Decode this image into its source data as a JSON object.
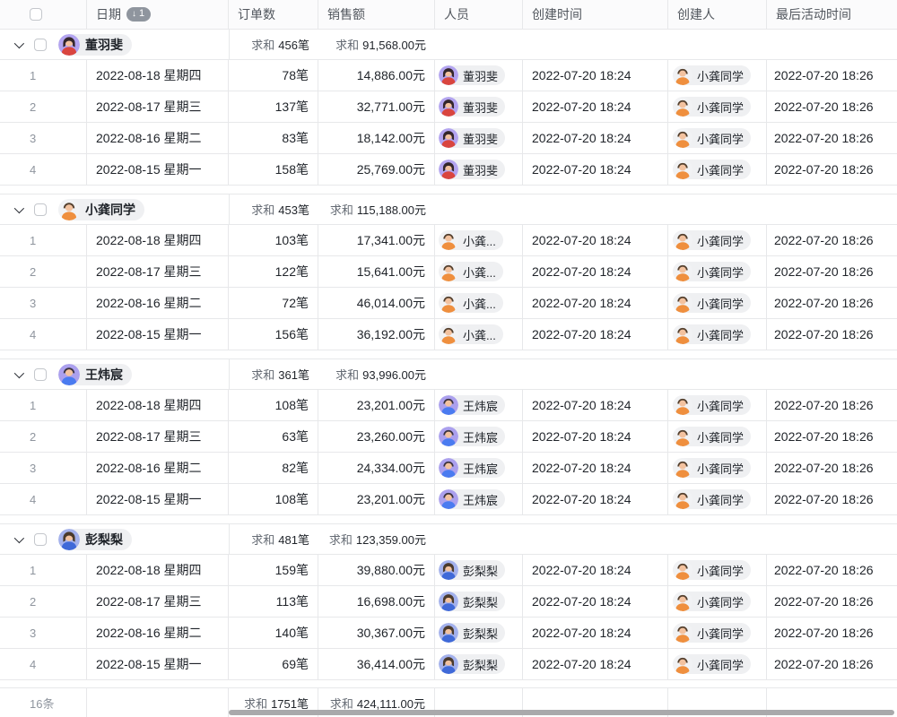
{
  "colors": {
    "border": "#e7e8ea",
    "header_bg": "#fbfbfc",
    "header_text": "#51565d",
    "text": "#1f2329",
    "muted": "#8f959e",
    "pill_bg": "#eff0f2",
    "sort_badge_bg": "#8f959e",
    "scrollbar": "#a9a9ab"
  },
  "avatars": {
    "dong": {
      "bg": "#b3a4f0",
      "hair": "#33262b",
      "shirt": "#d9453f",
      "female": true
    },
    "gong": {
      "bg": "#f1f2f4",
      "hair": "#54402e",
      "shirt": "#ef8f3e",
      "female": false
    },
    "wang": {
      "bg": "#aba0ee",
      "hair": "#3a3340",
      "shirt": "#4a7bf0",
      "female": false
    },
    "peng": {
      "bg": "#a3b1ec",
      "hair": "#4a3a2c",
      "shirt": "#3f69d8",
      "female": true
    }
  },
  "table": {
    "columns": [
      {
        "label": "日期"
      },
      {
        "label": "订单数"
      },
      {
        "label": "销售额"
      },
      {
        "label": "人员"
      },
      {
        "label": "创建时间"
      },
      {
        "label": "创建人"
      },
      {
        "label": "最后活动时间"
      }
    ],
    "sort": {
      "column": "日期",
      "icon": "↓",
      "order": "1"
    },
    "summary_label": "求和",
    "groups": [
      {
        "name": "董羽斐",
        "avatar": "dong",
        "orders_sum": "456笔",
        "sales_sum": "91,568.00元",
        "rows": [
          {
            "num": "1",
            "date": "2022-08-18 星期四",
            "orders": "78笔",
            "sales": "14,886.00元",
            "person": {
              "name": "董羽斐",
              "avatar": "dong"
            },
            "created": "2022-07-20 18:24",
            "creator": {
              "name": "小龚同学",
              "avatar": "gong"
            },
            "last_active": "2022-07-20 18:26"
          },
          {
            "num": "2",
            "date": "2022-08-17 星期三",
            "orders": "137笔",
            "sales": "32,771.00元",
            "person": {
              "name": "董羽斐",
              "avatar": "dong"
            },
            "created": "2022-07-20 18:24",
            "creator": {
              "name": "小龚同学",
              "avatar": "gong"
            },
            "last_active": "2022-07-20 18:26"
          },
          {
            "num": "3",
            "date": "2022-08-16 星期二",
            "orders": "83笔",
            "sales": "18,142.00元",
            "person": {
              "name": "董羽斐",
              "avatar": "dong"
            },
            "created": "2022-07-20 18:24",
            "creator": {
              "name": "小龚同学",
              "avatar": "gong"
            },
            "last_active": "2022-07-20 18:26"
          },
          {
            "num": "4",
            "date": "2022-08-15 星期一",
            "orders": "158笔",
            "sales": "25,769.00元",
            "person": {
              "name": "董羽斐",
              "avatar": "dong"
            },
            "created": "2022-07-20 18:24",
            "creator": {
              "name": "小龚同学",
              "avatar": "gong"
            },
            "last_active": "2022-07-20 18:26"
          }
        ]
      },
      {
        "name": "小龚同学",
        "avatar": "gong",
        "orders_sum": "453笔",
        "sales_sum": "115,188.00元",
        "rows": [
          {
            "num": "1",
            "date": "2022-08-18 星期四",
            "orders": "103笔",
            "sales": "17,341.00元",
            "person": {
              "name": "小龚...",
              "avatar": "gong"
            },
            "created": "2022-07-20 18:24",
            "creator": {
              "name": "小龚同学",
              "avatar": "gong"
            },
            "last_active": "2022-07-20 18:26"
          },
          {
            "num": "2",
            "date": "2022-08-17 星期三",
            "orders": "122笔",
            "sales": "15,641.00元",
            "person": {
              "name": "小龚...",
              "avatar": "gong"
            },
            "created": "2022-07-20 18:24",
            "creator": {
              "name": "小龚同学",
              "avatar": "gong"
            },
            "last_active": "2022-07-20 18:26"
          },
          {
            "num": "3",
            "date": "2022-08-16 星期二",
            "orders": "72笔",
            "sales": "46,014.00元",
            "person": {
              "name": "小龚...",
              "avatar": "gong"
            },
            "created": "2022-07-20 18:24",
            "creator": {
              "name": "小龚同学",
              "avatar": "gong"
            },
            "last_active": "2022-07-20 18:26"
          },
          {
            "num": "4",
            "date": "2022-08-15 星期一",
            "orders": "156笔",
            "sales": "36,192.00元",
            "person": {
              "name": "小龚...",
              "avatar": "gong"
            },
            "created": "2022-07-20 18:24",
            "creator": {
              "name": "小龚同学",
              "avatar": "gong"
            },
            "last_active": "2022-07-20 18:26"
          }
        ]
      },
      {
        "name": "王炜宸",
        "avatar": "wang",
        "orders_sum": "361笔",
        "sales_sum": "93,996.00元",
        "rows": [
          {
            "num": "1",
            "date": "2022-08-18 星期四",
            "orders": "108笔",
            "sales": "23,201.00元",
            "person": {
              "name": "王炜宸",
              "avatar": "wang"
            },
            "created": "2022-07-20 18:24",
            "creator": {
              "name": "小龚同学",
              "avatar": "gong"
            },
            "last_active": "2022-07-20 18:26"
          },
          {
            "num": "2",
            "date": "2022-08-17 星期三",
            "orders": "63笔",
            "sales": "23,260.00元",
            "person": {
              "name": "王炜宸",
              "avatar": "wang"
            },
            "created": "2022-07-20 18:24",
            "creator": {
              "name": "小龚同学",
              "avatar": "gong"
            },
            "last_active": "2022-07-20 18:26"
          },
          {
            "num": "3",
            "date": "2022-08-16 星期二",
            "orders": "82笔",
            "sales": "24,334.00元",
            "person": {
              "name": "王炜宸",
              "avatar": "wang"
            },
            "created": "2022-07-20 18:24",
            "creator": {
              "name": "小龚同学",
              "avatar": "gong"
            },
            "last_active": "2022-07-20 18:26"
          },
          {
            "num": "4",
            "date": "2022-08-15 星期一",
            "orders": "108笔",
            "sales": "23,201.00元",
            "person": {
              "name": "王炜宸",
              "avatar": "wang"
            },
            "created": "2022-07-20 18:24",
            "creator": {
              "name": "小龚同学",
              "avatar": "gong"
            },
            "last_active": "2022-07-20 18:26"
          }
        ]
      },
      {
        "name": "彭梨梨",
        "avatar": "peng",
        "orders_sum": "481笔",
        "sales_sum": "123,359.00元",
        "rows": [
          {
            "num": "1",
            "date": "2022-08-18 星期四",
            "orders": "159笔",
            "sales": "39,880.00元",
            "person": {
              "name": "彭梨梨",
              "avatar": "peng"
            },
            "created": "2022-07-20 18:24",
            "creator": {
              "name": "小龚同学",
              "avatar": "gong"
            },
            "last_active": "2022-07-20 18:26"
          },
          {
            "num": "2",
            "date": "2022-08-17 星期三",
            "orders": "113笔",
            "sales": "16,698.00元",
            "person": {
              "name": "彭梨梨",
              "avatar": "peng"
            },
            "created": "2022-07-20 18:24",
            "creator": {
              "name": "小龚同学",
              "avatar": "gong"
            },
            "last_active": "2022-07-20 18:26"
          },
          {
            "num": "3",
            "date": "2022-08-16 星期二",
            "orders": "140笔",
            "sales": "30,367.00元",
            "person": {
              "name": "彭梨梨",
              "avatar": "peng"
            },
            "created": "2022-07-20 18:24",
            "creator": {
              "name": "小龚同学",
              "avatar": "gong"
            },
            "last_active": "2022-07-20 18:26"
          },
          {
            "num": "4",
            "date": "2022-08-15 星期一",
            "orders": "69笔",
            "sales": "36,414.00元",
            "person": {
              "name": "彭梨梨",
              "avatar": "peng"
            },
            "created": "2022-07-20 18:24",
            "creator": {
              "name": "小龚同学",
              "avatar": "gong"
            },
            "last_active": "2022-07-20 18:26"
          }
        ]
      }
    ],
    "footer": {
      "count": "16条",
      "orders_sum": "1751笔",
      "sales_sum": "424,111.00元"
    }
  }
}
